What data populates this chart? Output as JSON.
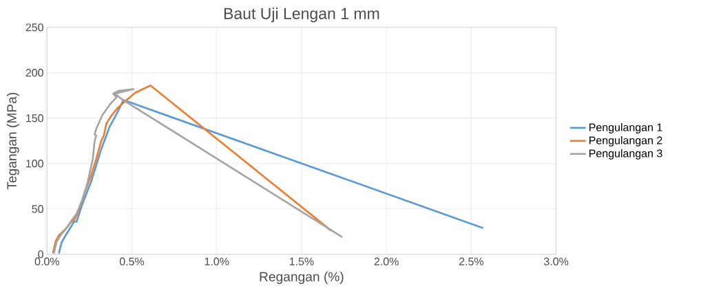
{
  "chart_data": {
    "type": "line",
    "title": "Baut Uji Lengan 1 mm",
    "xlabel": "Regangan (%)",
    "ylabel": "Tegangan (MPa)",
    "xlim": [
      0,
      3
    ],
    "xticks": [
      {
        "value": 0,
        "label": "0.0%"
      },
      {
        "value": 0.5,
        "label": "0.5%"
      },
      {
        "value": 1,
        "label": "1.0%"
      },
      {
        "value": 1.5,
        "label": "1.5%"
      },
      {
        "value": 2,
        "label": "2.0%"
      },
      {
        "value": 2.5,
        "label": "2.5%"
      },
      {
        "value": 3,
        "label": "3.0%"
      }
    ],
    "ylim": [
      0,
      250
    ],
    "yticks": [
      0,
      50,
      100,
      150,
      200,
      250
    ],
    "grid": true,
    "legend": "right",
    "marker": "none",
    "line_style": "solid",
    "series": [
      {
        "name": "Pengulangan 1",
        "color": "#5b9bd5",
        "x": [
          0.07,
          0.086,
          0.11,
          0.14,
          0.16,
          0.175,
          0.195,
          0.22,
          0.26,
          0.29,
          0.32,
          0.35,
          0.37,
          0.4,
          0.43,
          0.45,
          2.57
        ],
        "values": [
          1,
          13,
          21,
          30,
          36,
          36,
          48,
          61,
          80,
          98,
          116,
          131,
          141,
          151,
          162,
          170,
          29
        ]
      },
      {
        "name": "Pengulangan 2",
        "color": "#ed7d31",
        "x": [
          0.035,
          0.05,
          0.07,
          0.105,
          0.135,
          0.165,
          0.19,
          0.22,
          0.26,
          0.29,
          0.32,
          0.335,
          0.35,
          0.38,
          0.42,
          0.47,
          0.52,
          0.61,
          1.675
        ],
        "values": [
          1,
          14,
          21,
          27,
          34,
          39,
          50,
          67,
          87,
          105,
          125,
          131,
          144,
          153,
          162,
          170,
          178,
          186,
          26
        ]
      },
      {
        "name": "Pengulangan 3",
        "color": "#a5a5a5",
        "x": [
          0.04,
          0.057,
          0.08,
          0.12,
          0.14,
          0.175,
          0.21,
          0.24,
          0.27,
          0.28,
          0.29,
          0.28,
          0.29,
          0.325,
          0.37,
          0.41,
          0.39,
          0.42,
          0.51,
          0.4,
          0.44,
          1.74
        ],
        "values": [
          1,
          14,
          21,
          30,
          36,
          45,
          61,
          80,
          105,
          124,
          131,
          132,
          138,
          153,
          165,
          173,
          177,
          180,
          182,
          177,
          171,
          19
        ]
      }
    ]
  }
}
